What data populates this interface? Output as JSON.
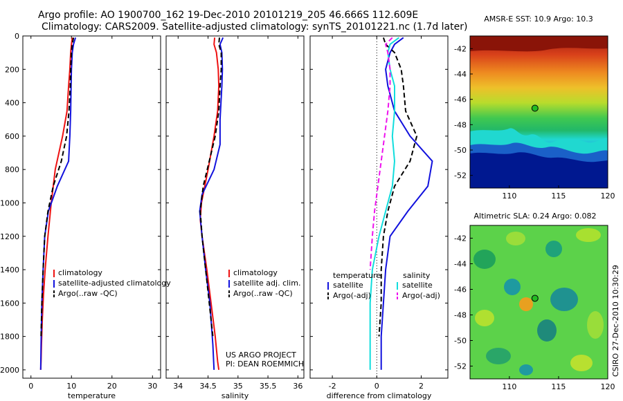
{
  "header": {
    "title_line1": "Argo profile: AO 1900700_162 19-Dec-2010 20101219_205 46.666S 112.609E",
    "title_line2": "Climatology: CARS2009. Satellite-adjusted climatology: synTS_20101221.nc (1.7d later)"
  },
  "credits": {
    "project": "US ARGO PROJECT",
    "pi": "PI: DEAN ROEMMICH",
    "stamp": "CSIRO 27-Dec-2010 10:30:29"
  },
  "colors": {
    "climatology": "#ee1111",
    "satellite": "#1111dd",
    "argo": "#000000",
    "cyan": "#11dddd",
    "magenta": "#ee11ee"
  },
  "chart_data": [
    {
      "type": "line",
      "xlabel": "temperature",
      "ylabel": "",
      "xlim": [
        -2,
        32
      ],
      "ylim": [
        0,
        2050
      ],
      "y_reversed": true,
      "xticks": [
        0,
        10,
        20,
        30
      ],
      "yticks": [
        0,
        200,
        400,
        600,
        800,
        1000,
        1200,
        1400,
        1600,
        1800,
        2000
      ],
      "legend": [
        {
          "label": "climatology",
          "color": "#ee1111",
          "dash": false
        },
        {
          "label": "satellite-adjusted climatology",
          "color": "#1111dd",
          "dash": false
        },
        {
          "label": "Argo(..raw -QC)",
          "color": "#000000",
          "dash": true
        }
      ],
      "series": [
        {
          "name": "climatology",
          "color": "#ee1111",
          "dash": false,
          "x": [
            10.2,
            10.0,
            9.8,
            9.6,
            9.3,
            8.9,
            7.8,
            6.0,
            5.0,
            4.2,
            3.5,
            3.1,
            2.8,
            2.6,
            2.5,
            2.4
          ],
          "y": [
            10,
            50,
            100,
            200,
            300,
            450,
            600,
            800,
            1000,
            1200,
            1400,
            1550,
            1700,
            1850,
            1950,
            2000
          ]
        },
        {
          "name": "satellite-adjusted climatology",
          "color": "#1111dd",
          "dash": false,
          "x": [
            11.0,
            10.5,
            10.2,
            10.0,
            9.9,
            9.8,
            9.6,
            9.3,
            6.5,
            4.3,
            3.4,
            3.0,
            2.7,
            2.5,
            2.4
          ],
          "y": [
            10,
            50,
            100,
            200,
            300,
            450,
            600,
            750,
            900,
            1050,
            1200,
            1400,
            1600,
            1850,
            2000
          ]
        },
        {
          "name": "Argo(..raw -QC)",
          "color": "#000000",
          "dash": true,
          "x": [
            10.5,
            10.2,
            10.0,
            9.8,
            9.7,
            9.4,
            8.8,
            7.5,
            5.5,
            4.2,
            3.4,
            3.0,
            2.7,
            2.5
          ],
          "y": [
            10,
            50,
            100,
            200,
            300,
            450,
            600,
            750,
            900,
            1050,
            1200,
            1400,
            1600,
            1800
          ]
        }
      ]
    },
    {
      "type": "line",
      "xlabel": "salinity",
      "ylabel": "",
      "xlim": [
        33.8,
        36.1
      ],
      "ylim": [
        0,
        2050
      ],
      "y_reversed": true,
      "xticks": [
        34,
        34.5,
        35,
        35.5,
        36
      ],
      "xticklabels": [
        "34",
        "34.5",
        "35",
        "35.5",
        "36"
      ],
      "legend": [
        {
          "label": "climatology",
          "color": "#ee1111",
          "dash": false
        },
        {
          "label": "satellite adj. clim.",
          "color": "#1111dd",
          "dash": false
        },
        {
          "label": "Argo(..raw -QC)",
          "color": "#000000",
          "dash": true
        }
      ],
      "series": [
        {
          "name": "climatology",
          "color": "#ee1111",
          "dash": false,
          "x": [
            34.61,
            34.6,
            34.64,
            34.67,
            34.68,
            34.66,
            34.6,
            34.5,
            34.39,
            34.37,
            34.4,
            34.48,
            34.55,
            34.62,
            34.66,
            34.68
          ],
          "y": [
            10,
            50,
            100,
            200,
            300,
            450,
            600,
            800,
            1000,
            1100,
            1200,
            1400,
            1600,
            1800,
            1950,
            2000
          ]
        },
        {
          "name": "satellite adj. clim.",
          "color": "#1111dd",
          "dash": false,
          "x": [
            34.75,
            34.7,
            34.73,
            34.74,
            34.73,
            34.7,
            34.7,
            34.6,
            34.4,
            34.36,
            34.4,
            34.46,
            34.53,
            34.58,
            34.6
          ],
          "y": [
            10,
            50,
            100,
            200,
            300,
            500,
            650,
            800,
            950,
            1050,
            1200,
            1400,
            1600,
            1850,
            2000
          ]
        },
        {
          "name": "Argo(..raw -QC)",
          "color": "#000000",
          "dash": true,
          "x": [
            34.69,
            34.68,
            34.72,
            34.72,
            34.7,
            34.68,
            34.62,
            34.52,
            34.42,
            34.37,
            34.4,
            34.46,
            34.52,
            34.58
          ],
          "y": [
            10,
            50,
            100,
            200,
            300,
            450,
            600,
            750,
            900,
            1050,
            1200,
            1400,
            1600,
            1800
          ]
        }
      ]
    },
    {
      "type": "line",
      "xlabel": "difference from climatology",
      "ylabel": "",
      "xlim": [
        -3,
        3.2
      ],
      "ylim": [
        0,
        2050
      ],
      "y_reversed": true,
      "xticks": [
        -2,
        0,
        2
      ],
      "legend_titles": {
        "left": "temperature",
        "right": "salinity"
      },
      "legend": [
        {
          "label": "satellite",
          "color": "#1111dd",
          "dash": false,
          "group": "temperature"
        },
        {
          "label": "Argo(-adj)",
          "color": "#000000",
          "dash": true,
          "group": "temperature"
        },
        {
          "label": "satellite",
          "color": "#11dddd",
          "dash": false,
          "group": "salinity"
        },
        {
          "label": "Argo(-adj)",
          "color": "#ee11ee",
          "dash": true,
          "group": "salinity"
        }
      ],
      "series": [
        {
          "name": "temperature satellite",
          "color": "#1111dd",
          "dash": false,
          "x": [
            1.2,
            0.8,
            0.6,
            0.4,
            0.5,
            0.8,
            1.5,
            2.5,
            2.3,
            1.4,
            0.6,
            0.4,
            0.3,
            0.2,
            0.2,
            0.2
          ],
          "y": [
            10,
            50,
            100,
            200,
            300,
            450,
            600,
            750,
            900,
            1050,
            1200,
            1400,
            1600,
            1800,
            1900,
            2000
          ]
        },
        {
          "name": "temperature Argo(-adj)",
          "color": "#000000",
          "dash": true,
          "x": [
            0.3,
            0.4,
            0.8,
            1.1,
            1.2,
            1.3,
            1.8,
            1.5,
            0.8,
            0.5,
            0.3,
            0.2,
            0.2,
            0.1
          ],
          "y": [
            10,
            50,
            100,
            200,
            300,
            450,
            600,
            750,
            900,
            1050,
            1200,
            1400,
            1600,
            1800
          ]
        },
        {
          "name": "salinity satellite",
          "color": "#11dddd",
          "dash": false,
          "x": [
            1.0,
            0.6,
            0.5,
            0.6,
            0.8,
            0.8,
            0.7,
            0.8,
            0.7,
            0.4,
            0.1,
            -0.2,
            -0.3,
            -0.3,
            -0.3
          ],
          "y": [
            10,
            50,
            100,
            200,
            300,
            450,
            600,
            750,
            900,
            1050,
            1200,
            1400,
            1600,
            1800,
            2000
          ]
        },
        {
          "name": "salinity Argo(-adj)",
          "color": "#ee11ee",
          "dash": true,
          "x": [
            0.7,
            0.4,
            0.5,
            0.6,
            0.6,
            0.5,
            0.3,
            0.1,
            -0.1,
            -0.2,
            -0.3
          ],
          "y": [
            10,
            50,
            100,
            200,
            300,
            450,
            650,
            850,
            1050,
            1200,
            1400
          ]
        }
      ]
    },
    {
      "type": "heatmap",
      "title": "AMSR-E SST: 10.9 Argo: 10.3",
      "xlim": [
        106,
        120
      ],
      "ylim": [
        -53,
        -41
      ],
      "xticks": [
        110,
        115,
        120
      ],
      "yticks": [
        -42,
        -44,
        -46,
        -48,
        -50,
        -52
      ],
      "marker": {
        "x": 112.6,
        "y": -46.7,
        "color": "#22bb22"
      }
    },
    {
      "type": "heatmap",
      "title": "Altimetric SLA: 0.24 Argo: 0.082",
      "xlim": [
        106,
        120
      ],
      "ylim": [
        -53,
        -41
      ],
      "xticks": [
        110,
        115,
        120
      ],
      "yticks": [
        -42,
        -44,
        -46,
        -48,
        -50,
        -52
      ],
      "marker": {
        "x": 112.6,
        "y": -46.7,
        "color": "#22bb22"
      }
    }
  ]
}
